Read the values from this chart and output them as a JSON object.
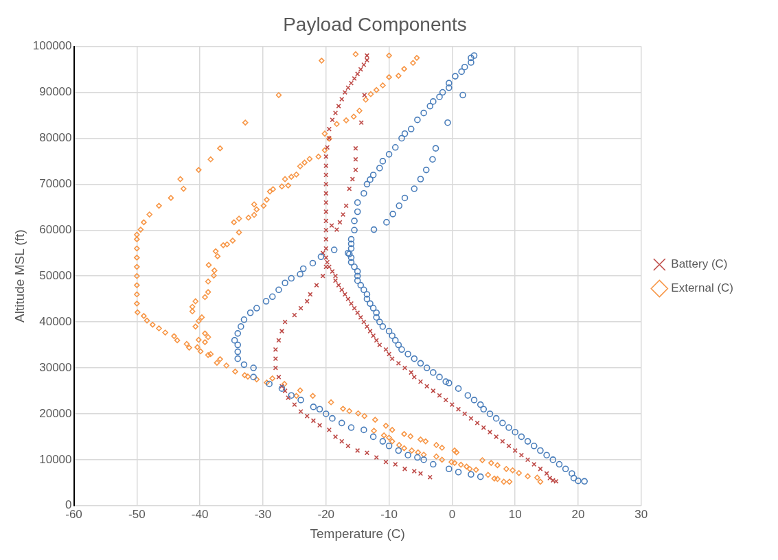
{
  "chart_data": {
    "type": "scatter",
    "title": "Payload Components",
    "xlabel": "Temperature (C)",
    "ylabel": "Altitude MSL (ft)",
    "xlim": [
      -60,
      30
    ],
    "xticks": [
      -60,
      -50,
      -40,
      -30,
      -20,
      -10,
      0,
      10,
      20,
      30
    ],
    "ylim": [
      0,
      100000
    ],
    "yticks": [
      0,
      10000,
      20000,
      30000,
      40000,
      50000,
      60000,
      70000,
      80000,
      90000,
      100000
    ],
    "grid": true,
    "legend": "right",
    "series": [
      {
        "color": "#4a7ebb",
        "marker": "circle",
        "x": [
          21,
          20,
          19.3,
          19,
          18,
          17,
          16,
          15,
          14,
          13,
          12,
          11,
          10,
          9,
          8,
          7,
          6,
          5,
          4.5,
          3.5,
          2.5,
          1,
          -0.5,
          -1,
          -2,
          -3,
          -4,
          -5,
          -6,
          -7,
          -8,
          -8.5,
          -9,
          -9.5,
          -10,
          -11,
          -11.5,
          -12,
          -12,
          -12.5,
          -13,
          -13.5,
          -13.5,
          -14,
          -14.5,
          -15,
          -15,
          -15,
          -15.5,
          -16,
          -16,
          -16.5,
          -16,
          -16,
          -16,
          -15.5,
          -15.5,
          -15,
          -15,
          -14,
          -13.5,
          -13,
          -12.5,
          -11.5,
          -11,
          -10,
          -9,
          -8,
          -7.5,
          -6.5,
          -5.5,
          -4.5,
          -3.5,
          -3,
          -2,
          -1.5,
          -0.5,
          -0.5,
          0.5,
          1.5,
          2,
          3,
          3,
          3.5,
          4.5,
          3,
          1,
          -0.5,
          -3,
          -4.5,
          -5.5,
          -7,
          -8.5,
          -10,
          -11,
          -12.5,
          -14,
          -16,
          -17.5,
          -19,
          -20,
          -21,
          -22,
          -24,
          -25.5,
          -27,
          -29,
          -31.5,
          -31.5,
          -33,
          -34,
          -34,
          -34,
          -34.5,
          -34,
          -33.5,
          -33,
          -32,
          -31,
          -29.5,
          -28.5,
          -27.5,
          -26.5,
          -25.5,
          -24.1,
          -23.6,
          -22.1,
          -20.8,
          -18.7,
          -16.3,
          -12.4,
          -10.4,
          -9.4,
          -8.4,
          -7.5,
          -6,
          -5,
          -4.1,
          -3.1,
          -2.6,
          -0.7,
          1.7
        ],
        "values": [
          5300,
          5400,
          6000,
          7000,
          8000,
          9000,
          10000,
          11000,
          12000,
          13000,
          14000,
          15000,
          16000,
          17000,
          18000,
          19000,
          20000,
          21000,
          22000,
          23000,
          24000,
          25500,
          26700,
          27000,
          28000,
          29000,
          30000,
          31000,
          32000,
          33000,
          34000,
          35000,
          36000,
          37000,
          38000,
          39000,
          40000,
          41000,
          42000,
          43000,
          44000,
          45000,
          46000,
          47000,
          48000,
          49000,
          50000,
          51000,
          52000,
          53000,
          54000,
          55000,
          56000,
          57000,
          58000,
          60000,
          62000,
          64000,
          66000,
          68000,
          70000,
          71000,
          72000,
          73500,
          75000,
          76500,
          78000,
          80000,
          81000,
          82000,
          84000,
          85500,
          87000,
          88000,
          89000,
          90000,
          91000,
          92000,
          93500,
          94500,
          95500,
          96500,
          97500,
          98000,
          6300,
          6800,
          7300,
          8000,
          9000,
          10000,
          10500,
          11000,
          12000,
          13000,
          14000,
          15000,
          16500,
          17000,
          18000,
          19000,
          20000,
          21000,
          21500,
          23000,
          24000,
          25500,
          26500,
          28000,
          30000,
          30700,
          32000,
          33500,
          35000,
          36000,
          37500,
          39000,
          40500,
          42000,
          43000,
          44500,
          45500,
          47000,
          48500,
          49500,
          50400,
          51600,
          52800,
          54200,
          55700,
          54800,
          60100,
          61700,
          63500,
          65300,
          67000,
          69000,
          71100,
          73100,
          75400,
          77800,
          83400,
          89400
        ]
      },
      {
        "name": "Battery (C)",
        "color": "#be4b48",
        "marker": "cross",
        "x": [
          16.5,
          16,
          15.5,
          15,
          14,
          13,
          12,
          11,
          10,
          9,
          8,
          7,
          6,
          5,
          4,
          3,
          2,
          1,
          0,
          -1,
          -2,
          -3,
          -4,
          -5,
          -6,
          -6.5,
          -7.5,
          -8.5,
          -9.5,
          -10,
          -10.5,
          -11.5,
          -12,
          -12.5,
          -13,
          -13.5,
          -14,
          -14.5,
          -15,
          -15.5,
          -16,
          -16.5,
          -17,
          -17.5,
          -18,
          -18.5,
          -18.5,
          -19,
          -19.5,
          -19.8,
          -20,
          -20,
          -20,
          -20,
          -20,
          -20,
          -20,
          -20,
          -20,
          -20,
          -20,
          -20,
          -19.8,
          -19.5,
          -19.5,
          -19,
          -18.5,
          -18,
          -17.5,
          -17,
          -16.5,
          -16,
          -15.5,
          -15,
          -14.5,
          -14,
          -13.5,
          -13.5,
          -3.5,
          -5,
          -6,
          -7.5,
          -9,
          -10.5,
          -12,
          -13.5,
          -15,
          -16.5,
          -17.5,
          -18.5,
          -19.5,
          -21,
          -22,
          -23,
          -24,
          -25,
          -26,
          -26.5,
          -27,
          -27.5,
          -28,
          -28,
          -28,
          -27.5,
          -27,
          -26.5,
          -25,
          -24,
          -23,
          -22.5,
          -21.5,
          -20.5,
          -20,
          -20.5,
          -19.1,
          -18.3,
          -17.8,
          -17.3,
          -16.8,
          -16.3,
          -15.8,
          -15.3,
          -15.3,
          -15.3,
          -14.4,
          -13.9
        ],
        "values": [
          5300,
          5500,
          6000,
          7000,
          8000,
          9000,
          10000,
          11000,
          12000,
          13000,
          14000,
          15000,
          16000,
          17000,
          18000,
          19000,
          20000,
          21000,
          22000,
          23000,
          24000,
          25000,
          26000,
          27000,
          28000,
          29000,
          30000,
          31000,
          32000,
          33000,
          34000,
          35000,
          36000,
          37000,
          38000,
          39000,
          40000,
          41000,
          42000,
          43000,
          44000,
          45000,
          46000,
          47000,
          48000,
          49000,
          50000,
          51000,
          52000,
          53000,
          54000,
          56000,
          58000,
          60000,
          62000,
          64000,
          66000,
          68000,
          70000,
          72000,
          74000,
          76000,
          78000,
          80000,
          82000,
          84000,
          85500,
          87000,
          88500,
          90000,
          91000,
          92000,
          93000,
          94000,
          95000,
          96000,
          97000,
          98000,
          6200,
          7000,
          7500,
          8000,
          9000,
          9500,
          10500,
          11500,
          12000,
          13000,
          14000,
          15000,
          16500,
          17500,
          18500,
          19500,
          20500,
          22000,
          23500,
          25000,
          26000,
          28000,
          30000,
          32000,
          34000,
          36000,
          38000,
          40000,
          41500,
          43000,
          44500,
          46000,
          48000,
          50000,
          52000,
          55000,
          61000,
          60100,
          61700,
          63400,
          65300,
          69000,
          71100,
          73100,
          75400,
          77800,
          83400,
          89400
        ]
      },
      {
        "name": "External (C)",
        "color": "#f79646",
        "marker": "diamond",
        "x": [
          14,
          13.5,
          12,
          10.6,
          9.6,
          8.6,
          9.1,
          8.2,
          7.2,
          6.7,
          6.2,
          7.2,
          5.7,
          4.8,
          3.8,
          2.8,
          2.3,
          1.4,
          0.4,
          -0.1,
          0.7,
          0.4,
          -1.6,
          -2.5,
          -1.6,
          -2.5,
          -4.5,
          -5.4,
          -6.4,
          -7.6,
          -8.4,
          -9.5,
          -10,
          -12.4,
          -10.8,
          -9.5,
          -10.5,
          -12.2,
          -13.9,
          -14.9,
          -16.3,
          -17.3,
          -19.2,
          -4.2,
          -5,
          -6.6,
          -7.6,
          -22.1,
          -24.1,
          -24.7,
          -26.6,
          -28.5,
          -29.4,
          -31,
          -32.4,
          -32.9,
          -34.4,
          -35.8,
          -36.8,
          -37.3,
          -38.3,
          -38.7,
          -39.9,
          -40.4,
          -40.2,
          -39.2,
          -38.7,
          -39.2,
          -40.7,
          -40.2,
          -39.7,
          -41.2,
          -41.2,
          -40.7,
          -39.2,
          -38.7,
          -38.7,
          -37.8,
          -37.7,
          -38.6,
          -37.2,
          -37.5,
          -36.3,
          -35.7,
          -34.8,
          -33.8,
          -34.6,
          -33.8,
          -32.3,
          -31.4,
          -31,
          -31.4,
          -29.9,
          -29.4,
          -28.9,
          -28.4,
          -27,
          -26,
          -26.5,
          -25.5,
          -24.7,
          -24.1,
          -23.4,
          -22.6,
          -21.2,
          -20.2,
          -19.5,
          -20.2,
          -18.3,
          -16.8,
          -15.6,
          -14.7,
          -13.7,
          -12.9,
          -12,
          -11,
          -10,
          -8.5,
          -7.6,
          -6.2,
          -5.6,
          -41.7,
          -42.1,
          -43.6,
          -44.1,
          -45.5,
          -46.5,
          -47.5,
          -48.4,
          -48.9,
          -49.9,
          -50,
          -50,
          -50,
          -50,
          -50,
          -50,
          -50,
          -50,
          -50,
          -49.4,
          -48.9,
          -48,
          -46.5,
          -44.6,
          -42.6,
          -43.1,
          -40.2,
          -38.3,
          -36.8,
          -32.8,
          -27.5,
          -20.7,
          -15.3,
          -10
        ],
        "values": [
          5200,
          6100,
          6400,
          7100,
          7700,
          8000,
          5200,
          5200,
          5800,
          5900,
          9300,
          8800,
          6700,
          9900,
          7800,
          8000,
          8500,
          8900,
          9300,
          9500,
          11600,
          12000,
          10000,
          10700,
          12600,
          13200,
          11100,
          11600,
          12000,
          12500,
          13200,
          14000,
          14800,
          16300,
          15300,
          16500,
          17400,
          18700,
          19500,
          20100,
          20600,
          21100,
          22500,
          14000,
          14400,
          15100,
          15600,
          23900,
          25100,
          23900,
          26500,
          27700,
          26800,
          27500,
          28100,
          28400,
          29200,
          30500,
          31900,
          31100,
          33000,
          32800,
          33600,
          34500,
          36100,
          35600,
          36700,
          37500,
          39000,
          40200,
          41000,
          42300,
          43300,
          44500,
          45400,
          46500,
          48800,
          50100,
          51200,
          52400,
          54300,
          55400,
          56700,
          56900,
          57700,
          59500,
          61700,
          62500,
          62700,
          63300,
          64500,
          65600,
          65300,
          66600,
          68400,
          68900,
          69500,
          69700,
          71100,
          71600,
          72100,
          73900,
          74700,
          75500,
          76000,
          77400,
          79900,
          81000,
          83100,
          83900,
          84700,
          86000,
          88400,
          89600,
          90500,
          91500,
          93300,
          93600,
          95100,
          96400,
          97500,
          34400,
          35200,
          36000,
          36900,
          37700,
          38600,
          39400,
          40300,
          41300,
          42100,
          44000,
          46000,
          48000,
          50000,
          52000,
          54000,
          56000,
          58000,
          59000,
          60100,
          61700,
          63400,
          65300,
          67000,
          69000,
          71100,
          73100,
          75400,
          77800,
          83400,
          89400,
          96900,
          98300,
          98000
        ]
      }
    ]
  }
}
